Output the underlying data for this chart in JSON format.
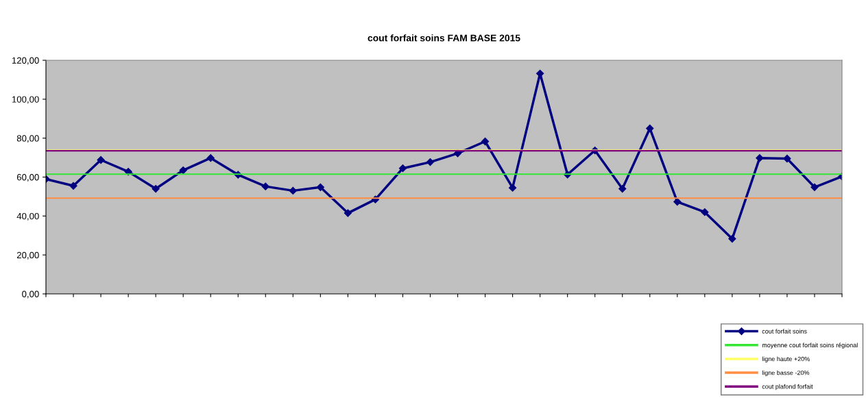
{
  "chart_data": {
    "type": "line",
    "title": "cout forfait soins FAM BASE 2015",
    "categories": [
      null,
      null,
      null,
      null,
      null,
      null,
      null,
      null,
      null,
      null,
      null,
      null,
      null,
      null,
      null,
      null,
      null,
      null,
      null,
      null,
      null,
      null,
      null,
      null,
      null,
      null,
      null,
      null,
      null,
      null
    ],
    "series": [
      {
        "name": "cout forfait soins",
        "color": "#000080",
        "marker": "diamond",
        "values": [
          59.0,
          55.5,
          68.8,
          62.8,
          54.0,
          63.5,
          69.8,
          61.2,
          55.2,
          53.0,
          54.8,
          41.5,
          48.5,
          64.5,
          67.7,
          72.2,
          78.3,
          54.5,
          113.2,
          61.3,
          73.7,
          54.0,
          85.0,
          47.3,
          42.0,
          28.3,
          69.8,
          69.5,
          54.8,
          60.3
        ]
      },
      {
        "name": "moyenne cout forfait soins régional",
        "color": "#33e633",
        "marker": "none",
        "values": [
          61.5,
          61.5,
          61.5,
          61.5,
          61.5,
          61.5,
          61.5,
          61.5,
          61.5,
          61.5,
          61.5,
          61.5,
          61.5,
          61.5,
          61.5,
          61.5,
          61.5,
          61.5,
          61.5,
          61.5,
          61.5,
          61.5,
          61.5,
          61.5,
          61.5,
          61.5,
          61.5,
          61.5,
          61.5,
          61.5
        ]
      },
      {
        "name": "ligne haute +20%",
        "color": "#ffff66",
        "marker": "none",
        "values": [
          73.8,
          73.8,
          73.8,
          73.8,
          73.8,
          73.8,
          73.8,
          73.8,
          73.8,
          73.8,
          73.8,
          73.8,
          73.8,
          73.8,
          73.8,
          73.8,
          73.8,
          73.8,
          73.8,
          73.8,
          73.8,
          73.8,
          73.8,
          73.8,
          73.8,
          73.8,
          73.8,
          73.8,
          73.8,
          73.8
        ]
      },
      {
        "name": "ligne basse -20%",
        "color": "#ff8c40",
        "marker": "none",
        "values": [
          49.2,
          49.2,
          49.2,
          49.2,
          49.2,
          49.2,
          49.2,
          49.2,
          49.2,
          49.2,
          49.2,
          49.2,
          49.2,
          49.2,
          49.2,
          49.2,
          49.2,
          49.2,
          49.2,
          49.2,
          49.2,
          49.2,
          49.2,
          49.2,
          49.2,
          49.2,
          49.2,
          49.2,
          49.2,
          49.2
        ]
      },
      {
        "name": "cout plafond forfait",
        "color": "#800080",
        "marker": "none",
        "values": [
          73.5,
          73.5,
          73.5,
          73.5,
          73.5,
          73.5,
          73.5,
          73.5,
          73.5,
          73.5,
          73.5,
          73.5,
          73.5,
          73.5,
          73.5,
          73.5,
          73.5,
          73.5,
          73.5,
          73.5,
          73.5,
          73.5,
          73.5,
          73.5,
          73.5,
          73.5,
          73.5,
          73.5,
          73.5,
          73.5
        ]
      }
    ],
    "ylim": [
      0,
      120
    ],
    "yticks": [
      {
        "value": 0,
        "label": "0,00"
      },
      {
        "value": 20,
        "label": "20,00"
      },
      {
        "value": 40,
        "label": "40,00"
      },
      {
        "value": 60,
        "label": "60,00"
      },
      {
        "value": 80,
        "label": "80,00"
      },
      {
        "value": 100,
        "label": "100,00"
      },
      {
        "value": 120,
        "label": "120,00"
      }
    ],
    "grid": false,
    "legend": "bottom right",
    "line_style": "solid"
  }
}
